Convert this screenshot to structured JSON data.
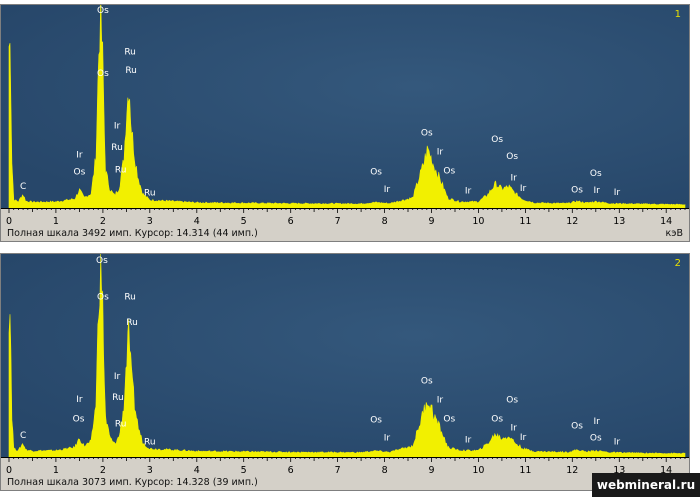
{
  "chart_data": [
    {
      "type": "area",
      "panel_number": "1",
      "status_text": "Полная шкала 3492 имп. Курсор: 14.314  (44 имп.)",
      "unit_label": "кэВ",
      "full_scale_counts": 3492,
      "xlim": [
        0,
        14.4
      ],
      "ylim": [
        0,
        3492
      ],
      "x_ticks": [
        "0",
        "1",
        "2",
        "3",
        "4",
        "5",
        "6",
        "7",
        "8",
        "9",
        "10",
        "11",
        "12",
        "13",
        "14"
      ],
      "colors": {
        "plot_bg": "#27476a",
        "spectrum": "#f2f000"
      },
      "x": [
        0.03,
        0.06,
        0.1,
        0.2,
        0.28,
        0.3,
        0.36,
        0.5,
        1.0,
        1.4,
        1.5,
        1.6,
        1.75,
        1.85,
        1.92,
        1.95,
        2.0,
        2.05,
        2.15,
        2.25,
        2.35,
        2.45,
        2.5,
        2.56,
        2.6,
        2.68,
        2.75,
        2.85,
        3.0,
        4.0,
        6.0,
        7.5,
        7.8,
        8.1,
        8.6,
        8.8,
        8.92,
        9.05,
        9.2,
        9.35,
        9.6,
        10.0,
        10.2,
        10.36,
        10.5,
        10.65,
        10.78,
        10.95,
        11.2,
        11.9,
        12.1,
        12.3,
        12.5,
        12.8,
        13.5,
        14.4
      ],
      "y": [
        2900,
        900,
        150,
        110,
        230,
        240,
        120,
        105,
        110,
        160,
        320,
        180,
        260,
        900,
        3000,
        3420,
        2600,
        700,
        330,
        220,
        370,
        900,
        1700,
        2260,
        1500,
        900,
        550,
        250,
        140,
        95,
        80,
        75,
        100,
        80,
        180,
        700,
        1060,
        760,
        480,
        170,
        110,
        110,
        240,
        430,
        340,
        380,
        260,
        150,
        90,
        80,
        120,
        90,
        115,
        80,
        70,
        60
      ],
      "peak_labels": [
        {
          "text": "C",
          "x": 0.3,
          "y": 340
        },
        {
          "text": "Os",
          "x": 2.0,
          "y": 3490
        },
        {
          "text": "Ru",
          "x": 2.58,
          "y": 2750
        },
        {
          "text": "Os",
          "x": 2.0,
          "y": 2360
        },
        {
          "text": "Ru",
          "x": 2.6,
          "y": 2420
        },
        {
          "text": "Ir",
          "x": 2.3,
          "y": 1420
        },
        {
          "text": "Ru",
          "x": 2.3,
          "y": 1040
        },
        {
          "text": "Ir",
          "x": 1.5,
          "y": 900
        },
        {
          "text": "Os",
          "x": 1.5,
          "y": 600
        },
        {
          "text": "Ru",
          "x": 2.38,
          "y": 640
        },
        {
          "text": "Ru",
          "x": 3.0,
          "y": 220
        },
        {
          "text": "Os",
          "x": 7.82,
          "y": 600
        },
        {
          "text": "Ir",
          "x": 8.05,
          "y": 290
        },
        {
          "text": "Os",
          "x": 8.9,
          "y": 1300
        },
        {
          "text": "Ir",
          "x": 9.18,
          "y": 960
        },
        {
          "text": "Os",
          "x": 9.38,
          "y": 620
        },
        {
          "text": "Ir",
          "x": 9.78,
          "y": 260
        },
        {
          "text": "Os",
          "x": 10.4,
          "y": 1180
        },
        {
          "text": "Os",
          "x": 10.72,
          "y": 880
        },
        {
          "text": "Ir",
          "x": 10.75,
          "y": 490
        },
        {
          "text": "Ir",
          "x": 10.95,
          "y": 300
        },
        {
          "text": "Os",
          "x": 12.1,
          "y": 280
        },
        {
          "text": "Os",
          "x": 12.5,
          "y": 570
        },
        {
          "text": "Ir",
          "x": 12.52,
          "y": 270
        },
        {
          "text": "Ir",
          "x": 12.95,
          "y": 230
        }
      ]
    },
    {
      "type": "area",
      "panel_number": "2",
      "status_text": "Полная шкала 3073 имп. Курсор: 14.328  (39 имп.)",
      "unit_label": "кэВ",
      "full_scale_counts": 3073,
      "xlim": [
        0,
        14.4
      ],
      "ylim": [
        0,
        3073
      ],
      "x_ticks": [
        "0",
        "1",
        "2",
        "3",
        "4",
        "5",
        "6",
        "7",
        "8",
        "9",
        "10",
        "11",
        "12",
        "13",
        "14"
      ],
      "colors": {
        "plot_bg": "#27476a",
        "spectrum": "#f2f000"
      },
      "x": [
        0.03,
        0.06,
        0.1,
        0.2,
        0.28,
        0.3,
        0.36,
        0.5,
        1.0,
        1.4,
        1.5,
        1.6,
        1.75,
        1.85,
        1.92,
        1.95,
        2.0,
        2.05,
        2.15,
        2.25,
        2.35,
        2.45,
        2.5,
        2.56,
        2.6,
        2.68,
        2.75,
        2.85,
        3.0,
        4.0,
        6.0,
        7.5,
        7.8,
        8.1,
        8.6,
        8.8,
        8.92,
        9.05,
        9.2,
        9.35,
        9.6,
        10.0,
        10.2,
        10.36,
        10.5,
        10.65,
        10.78,
        10.95,
        11.2,
        11.9,
        12.1,
        12.3,
        12.5,
        12.8,
        13.5,
        14.4
      ],
      "y": [
        2300,
        700,
        130,
        100,
        200,
        210,
        110,
        95,
        100,
        150,
        290,
        170,
        240,
        820,
        2650,
        2980,
        2300,
        640,
        300,
        200,
        330,
        820,
        1500,
        1980,
        1300,
        800,
        480,
        220,
        130,
        90,
        75,
        70,
        95,
        75,
        170,
        640,
        920,
        660,
        420,
        150,
        100,
        100,
        210,
        360,
        290,
        330,
        220,
        130,
        85,
        75,
        110,
        80,
        100,
        70,
        60,
        55
      ],
      "peak_labels": [
        {
          "text": "C",
          "x": 0.3,
          "y": 300
        },
        {
          "text": "Os",
          "x": 1.98,
          "y": 3060
        },
        {
          "text": "Ru",
          "x": 2.58,
          "y": 2480
        },
        {
          "text": "Os",
          "x": 2.0,
          "y": 2480
        },
        {
          "text": "Ru",
          "x": 2.62,
          "y": 2080
        },
        {
          "text": "Ir",
          "x": 2.3,
          "y": 1230
        },
        {
          "text": "Ru",
          "x": 2.32,
          "y": 900
        },
        {
          "text": "Ir",
          "x": 1.5,
          "y": 870
        },
        {
          "text": "Os",
          "x": 1.48,
          "y": 560
        },
        {
          "text": "Ru",
          "x": 2.38,
          "y": 480
        },
        {
          "text": "Ru",
          "x": 3.0,
          "y": 200
        },
        {
          "text": "Os",
          "x": 7.82,
          "y": 540
        },
        {
          "text": "Ir",
          "x": 8.05,
          "y": 260
        },
        {
          "text": "Os",
          "x": 8.9,
          "y": 1160
        },
        {
          "text": "Ir",
          "x": 9.18,
          "y": 860
        },
        {
          "text": "Os",
          "x": 9.38,
          "y": 560
        },
        {
          "text": "Ir",
          "x": 9.78,
          "y": 230
        },
        {
          "text": "Os",
          "x": 10.4,
          "y": 560
        },
        {
          "text": "Os",
          "x": 10.72,
          "y": 860
        },
        {
          "text": "Ir",
          "x": 10.75,
          "y": 420
        },
        {
          "text": "Ir",
          "x": 10.95,
          "y": 270
        },
        {
          "text": "Os",
          "x": 12.1,
          "y": 450
        },
        {
          "text": "Ir",
          "x": 12.52,
          "y": 520
        },
        {
          "text": "Os",
          "x": 12.5,
          "y": 260
        },
        {
          "text": "Ir",
          "x": 12.95,
          "y": 200
        }
      ]
    }
  ],
  "watermark": "webmineral.ru"
}
